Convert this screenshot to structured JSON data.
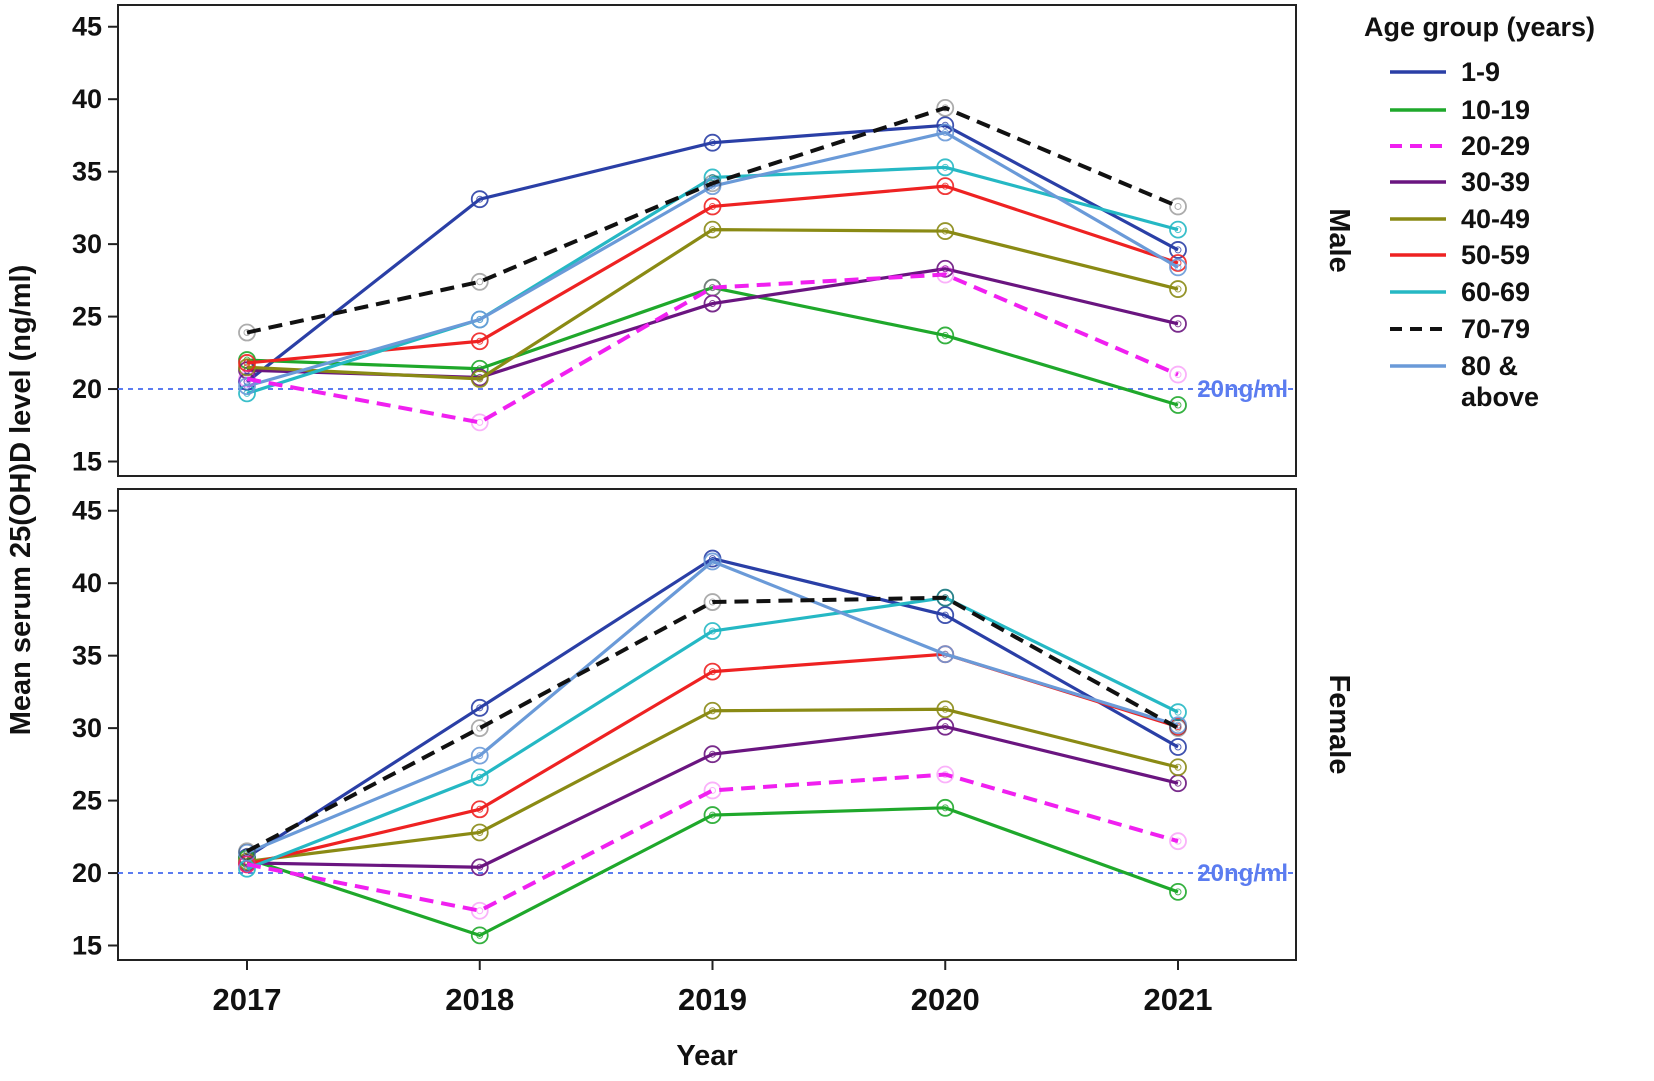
{
  "chart_data": {
    "type": "line",
    "x": [
      "2017",
      "2018",
      "2019",
      "2020",
      "2021"
    ],
    "xlabel": "Year",
    "ylabel": "Mean serum 25(OH)D level (ng/ml)",
    "ylim": [
      14,
      46.5
    ],
    "yticks": [
      15,
      20,
      25,
      30,
      35,
      40,
      45
    ],
    "reference_line": {
      "value": 20,
      "label": "20ng/ml",
      "color": "#5b7cf0"
    },
    "legend": {
      "title": "Age group (years)",
      "placement": "right"
    },
    "series_styles": [
      {
        "name": "1-9",
        "color": "#2a3fa6",
        "dash": false
      },
      {
        "name": "10-19",
        "color": "#1fa82b",
        "dash": false
      },
      {
        "name": "20-29",
        "color": "#f020f0",
        "dash": true
      },
      {
        "name": "30-39",
        "color": "#6a1580",
        "dash": false
      },
      {
        "name": "40-49",
        "color": "#8a8a14",
        "dash": false
      },
      {
        "name": "50-59",
        "color": "#ee2222",
        "dash": false
      },
      {
        "name": "60-69",
        "color": "#25b8c4",
        "dash": false
      },
      {
        "name": "70-79",
        "color": "#111111",
        "dash": true
      },
      {
        "name": "80 & above",
        "color": "#6a9ad8",
        "dash": false
      }
    ],
    "legend_labels": [
      {
        "lines": [
          "1-9"
        ]
      },
      {
        "lines": [
          "10-19"
        ]
      },
      {
        "lines": [
          "20-29"
        ]
      },
      {
        "lines": [
          "30-39"
        ]
      },
      {
        "lines": [
          "40-49"
        ]
      },
      {
        "lines": [
          "50-59"
        ]
      },
      {
        "lines": [
          "60-69"
        ]
      },
      {
        "lines": [
          "70-79"
        ]
      },
      {
        "lines": [
          "80 &",
          "above"
        ]
      }
    ],
    "panels": [
      {
        "label": "Male",
        "series": [
          {
            "name": "1-9",
            "values": [
              20.5,
              33.1,
              37.0,
              38.2,
              29.6
            ]
          },
          {
            "name": "10-19",
            "values": [
              22.0,
              21.4,
              27.0,
              23.7,
              18.9
            ]
          },
          {
            "name": "20-29",
            "values": [
              20.7,
              17.7,
              27.0,
              27.9,
              21.0
            ]
          },
          {
            "name": "30-39",
            "values": [
              21.3,
              20.8,
              25.9,
              28.3,
              24.5
            ]
          },
          {
            "name": "40-49",
            "values": [
              21.5,
              20.7,
              31.0,
              30.9,
              26.9
            ]
          },
          {
            "name": "50-59",
            "values": [
              21.8,
              23.3,
              32.6,
              34.0,
              28.7
            ]
          },
          {
            "name": "60-69",
            "values": [
              19.7,
              24.8,
              34.6,
              35.3,
              31.0
            ]
          },
          {
            "name": "70-79",
            "values": [
              23.9,
              27.4,
              34.2,
              39.4,
              32.6
            ]
          },
          {
            "name": "80 & above",
            "values": [
              20.2,
              24.8,
              34.0,
              37.7,
              28.4
            ]
          }
        ]
      },
      {
        "label": "Female",
        "series": [
          {
            "name": "1-9",
            "values": [
              21.1,
              31.4,
              41.7,
              37.8,
              28.7
            ]
          },
          {
            "name": "10-19",
            "values": [
              21.0,
              15.7,
              24.0,
              24.5,
              18.7
            ]
          },
          {
            "name": "20-29",
            "values": [
              20.6,
              17.4,
              25.7,
              26.8,
              22.2
            ]
          },
          {
            "name": "30-39",
            "values": [
              20.7,
              20.4,
              28.2,
              30.1,
              26.2
            ]
          },
          {
            "name": "40-49",
            "values": [
              20.8,
              22.8,
              31.2,
              31.3,
              27.3
            ]
          },
          {
            "name": "50-59",
            "values": [
              20.6,
              24.4,
              33.9,
              35.1,
              30.1
            ]
          },
          {
            "name": "60-69",
            "values": [
              20.3,
              26.6,
              36.7,
              39.0,
              31.1
            ]
          },
          {
            "name": "70-79",
            "values": [
              21.5,
              30.0,
              38.7,
              39.0,
              30.0
            ]
          },
          {
            "name": "80 & above",
            "values": [
              21.4,
              28.1,
              41.5,
              35.1,
              30.2
            ]
          }
        ]
      }
    ]
  }
}
